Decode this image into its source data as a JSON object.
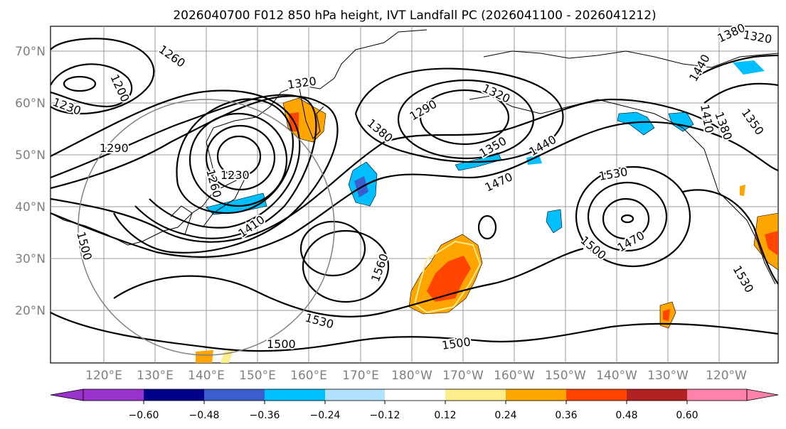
{
  "title": "2026040700 F012 850 hPa height, IVT Landfall PC (2026041100 - 2026041212)",
  "lat_labels": [
    "70°N",
    "60°N",
    "50°N",
    "40°N",
    "30°N",
    "20°N"
  ],
  "lon_labels": [
    "120°E",
    "130°E",
    "140°E",
    "150°E",
    "160°E",
    "170°E",
    "180°W",
    "170°W",
    "160°W",
    "150°W",
    "140°W",
    "130°W",
    "120°W"
  ],
  "contour_labels": [
    "1260",
    "1200",
    "1230",
    "1290",
    "1320",
    "1230",
    "1260",
    "1380",
    "1410",
    "1290",
    "1320",
    "1350",
    "1440",
    "1470",
    "1530",
    "1560",
    "1500",
    "1500",
    "1530",
    "1500",
    "1470",
    "1500",
    "1530",
    "1410",
    "1380",
    "1350",
    "1440",
    "1380",
    "1320"
  ],
  "colorbar": {
    "ticks": [
      "−0.60",
      "−0.48",
      "−0.36",
      "−0.24",
      "−0.12",
      "0.12",
      "0.24",
      "0.36",
      "0.48",
      "0.60"
    ],
    "colors": [
      "#9932CC",
      "#00008B",
      "#3A5FCD",
      "#00BFFF",
      "#B0E2FF",
      "#FFFFFF",
      "#FFEC8B",
      "#FFA500",
      "#FF4500",
      "#B22222",
      "#FF82AB"
    ]
  },
  "colors": {
    "gray_label": "#808080",
    "circle": "#808080"
  }
}
